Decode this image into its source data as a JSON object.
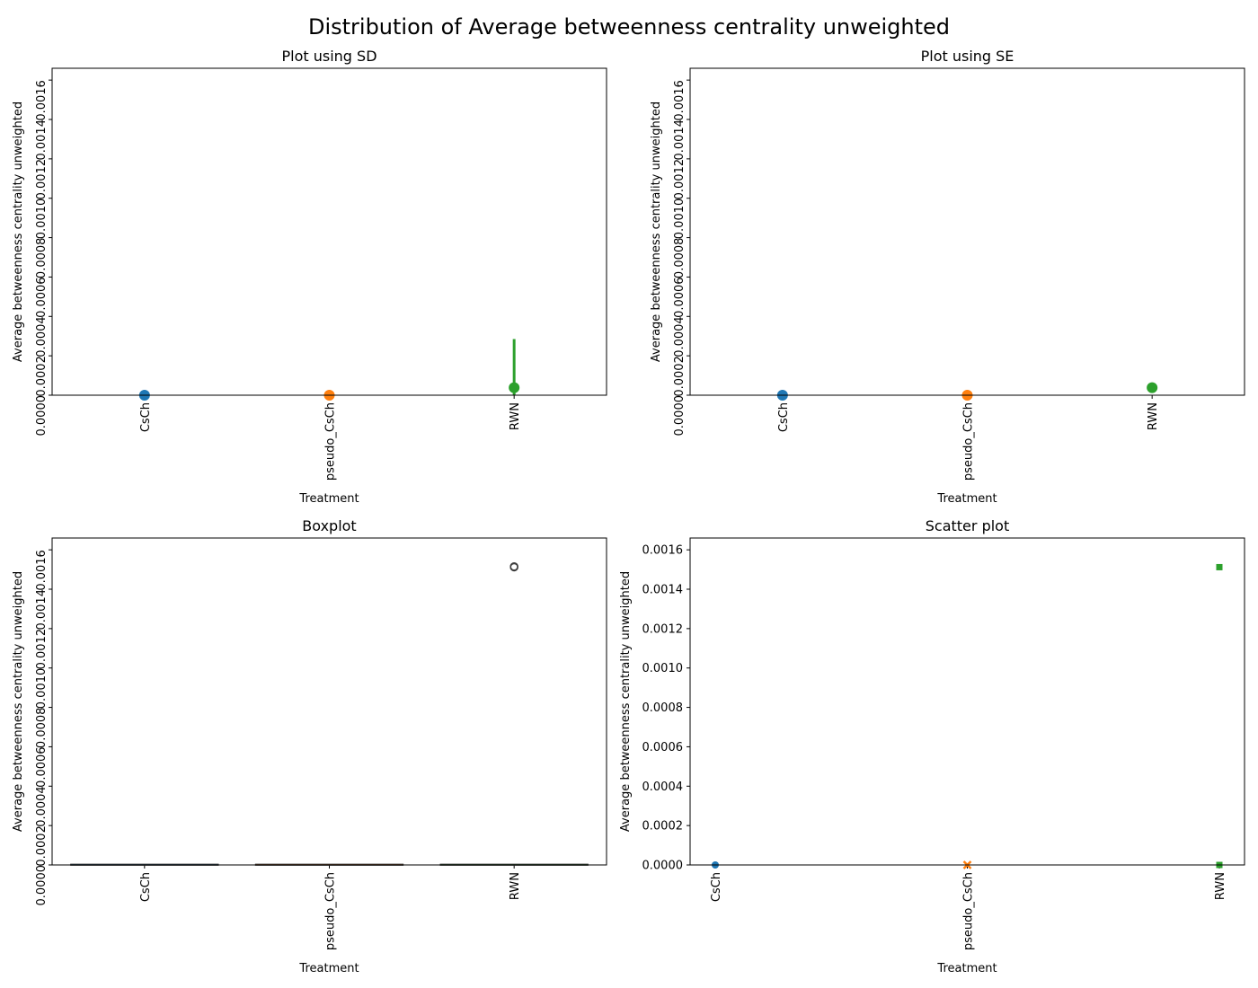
{
  "figure": {
    "title": "Distribution of Average betweenness centrality unweighted"
  },
  "colors": {
    "CsCh": "#1f77b4",
    "pseudo_CsCh": "#ff7f0e",
    "RWN": "#2ca02c",
    "axis": "#000000",
    "box_outline": "#3d3d3d"
  },
  "chart_data": [
    {
      "type": "pointplot",
      "title": "Plot using SD",
      "xlabel": "Treatment",
      "ylabel": "Average betweenness centrality unweighted",
      "categories": [
        "CsCh",
        "pseudo_CsCh",
        "RWN"
      ],
      "ylim": [
        0,
        0.00166
      ],
      "yticks": [
        0,
        0.0002,
        0.0004,
        0.0006,
        0.0008,
        0.001,
        0.0012,
        0.0014,
        0.0016
      ],
      "ytick_labels": [
        "0.0000",
        "0.0002",
        "0.0004",
        "0.0006",
        "0.0008",
        "0.0010",
        "0.0012",
        "0.0014",
        "0.0016"
      ],
      "ytick_rotation": "vertical",
      "xtick_rotation": "vertical",
      "values": [
        0.0,
        0.0,
        3.8e-05
      ],
      "err_low": [
        0.0,
        0.0,
        0.0
      ],
      "err_high": [
        0.0,
        0.0,
        0.000285
      ]
    },
    {
      "type": "pointplot",
      "title": "Plot using SE",
      "xlabel": "Treatment",
      "ylabel": "Average betweenness centrality unweighted",
      "categories": [
        "CsCh",
        "pseudo_CsCh",
        "RWN"
      ],
      "ylim": [
        0,
        0.00166
      ],
      "yticks": [
        0,
        0.0002,
        0.0004,
        0.0006,
        0.0008,
        0.001,
        0.0012,
        0.0014,
        0.0016
      ],
      "ytick_labels": [
        "0.0000",
        "0.0002",
        "0.0004",
        "0.0006",
        "0.0008",
        "0.0010",
        "0.0012",
        "0.0014",
        "0.0016"
      ],
      "ytick_rotation": "vertical",
      "xtick_rotation": "vertical",
      "values": [
        0.0,
        0.0,
        3.8e-05
      ],
      "err_low": [
        0.0,
        0.0,
        3.4e-05
      ],
      "err_high": [
        0.0,
        0.0,
        4.2e-05
      ]
    },
    {
      "type": "boxplot",
      "title": "Boxplot",
      "xlabel": "Treatment",
      "ylabel": "Average betweenness centrality unweighted",
      "categories": [
        "CsCh",
        "pseudo_CsCh",
        "RWN"
      ],
      "ylim": [
        0,
        0.00166
      ],
      "yticks": [
        0,
        0.0002,
        0.0004,
        0.0006,
        0.0008,
        0.001,
        0.0012,
        0.0014,
        0.0016
      ],
      "ytick_labels": [
        "0.0000",
        "0.0002",
        "0.0004",
        "0.0006",
        "0.0008",
        "0.0010",
        "0.0012",
        "0.0014",
        "0.0016"
      ],
      "ytick_rotation": "vertical",
      "xtick_rotation": "vertical",
      "box_median": [
        0.0,
        0.0,
        0.0
      ],
      "outliers": [
        [],
        [],
        [
          0.001512,
          0.001515
        ]
      ]
    },
    {
      "type": "scatter",
      "title": "Scatter plot",
      "xlabel": "Treatment",
      "ylabel": "Average betweenness centrality unweighted",
      "categories": [
        "CsCh",
        "pseudo_CsCh",
        "RWN"
      ],
      "ylim": [
        0,
        0.00166
      ],
      "yticks": [
        0,
        0.0002,
        0.0004,
        0.0006,
        0.0008,
        0.001,
        0.0012,
        0.0014,
        0.0016
      ],
      "ytick_labels": [
        "0.0000",
        "0.0002",
        "0.0004",
        "0.0006",
        "0.0008",
        "0.0010",
        "0.0012",
        "0.0014",
        "0.0016"
      ],
      "ytick_rotation": "horizontal",
      "xtick_rotation": "vertical",
      "points": [
        {
          "category": "CsCh",
          "y": 0.0,
          "marker": "circle"
        },
        {
          "category": "pseudo_CsCh",
          "y": 0.0,
          "marker": "x"
        },
        {
          "category": "RWN",
          "y": 0.001512,
          "marker": "square"
        },
        {
          "category": "RWN",
          "y": 0.0,
          "marker": "square"
        }
      ]
    }
  ]
}
